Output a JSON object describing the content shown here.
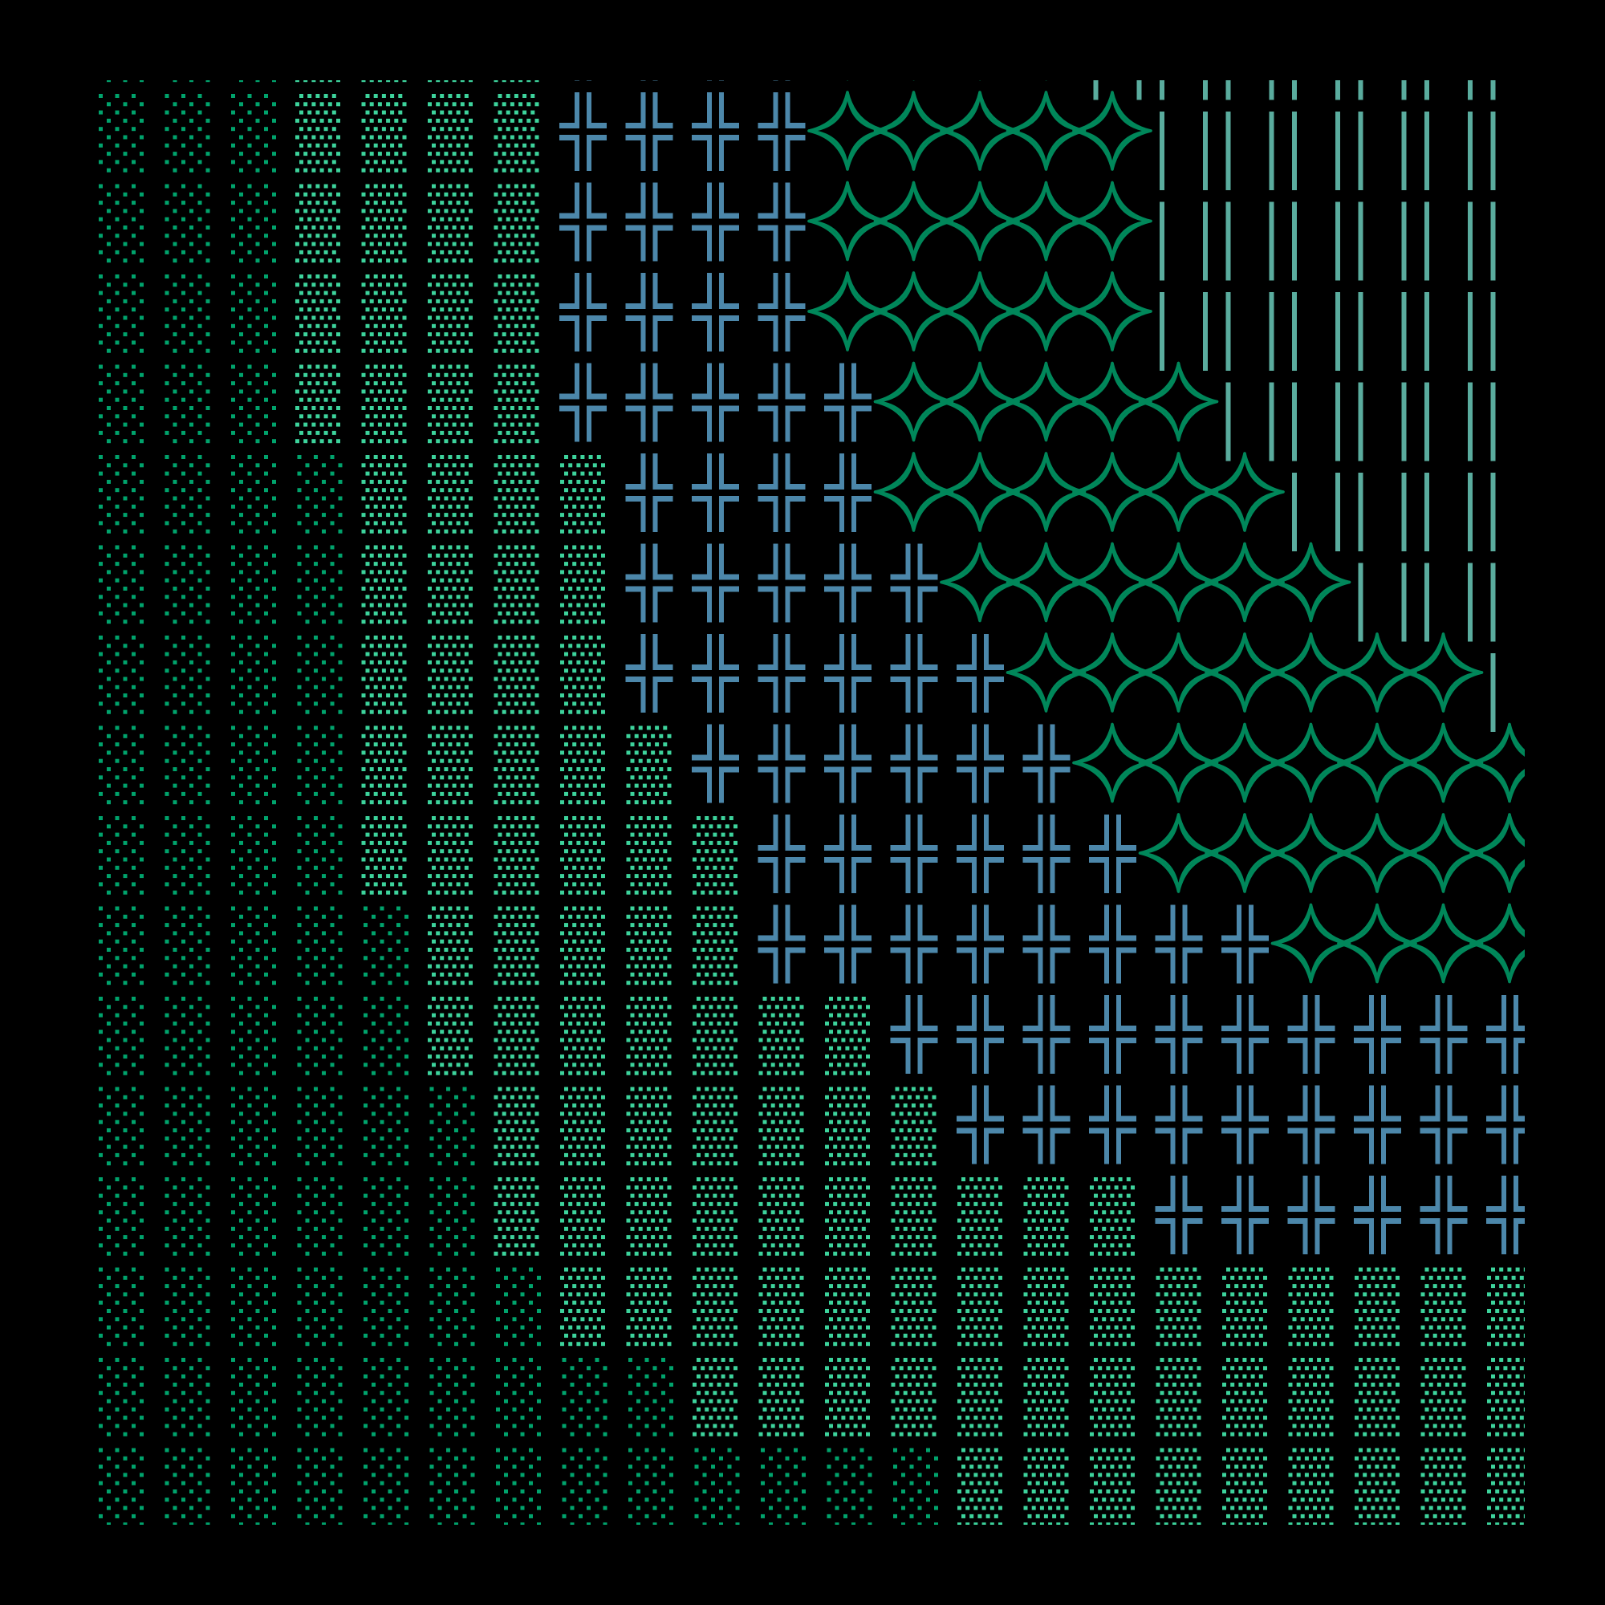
{
  "pattern": {
    "legend": {
      "s": "sparse-dots",
      "d": "dense-dots",
      "c": "double-cross",
      "x": "four-point-star",
      "l": "vertical-lines"
    },
    "colors": {
      "background": "#000000",
      "s": "#00a36c",
      "d": "#3dd39c",
      "c": "#4c87aa",
      "x": "#00875a",
      "l": "#5aac9e"
    },
    "partial_top_row": "sssddddccccxxxxlllllll",
    "rows": [
      "sssddddccccxxxxxllllll",
      "sssddddccccxxxxxllllll",
      "sssddddccccxxxxxllllll",
      "sssddddcccccxxxxxlllll",
      "ssssddddccccxxxxxxllll",
      "ssssddddcccccxxxxxxlll",
      "ssssddddccccccxxxxxxxl",
      "ssssdddddccccccxxxxxxx",
      "ssssddddddccccccxxxxxx",
      "sssssdddddccccccccxxxx",
      "sssssdddddddcccccccccc",
      "ssssssdddddddccccccccc",
      "ssssssddddddddddcccccc",
      "sssssssddddddddddddddd",
      "sssssssssddddddddddddd",
      "sssssssssssssddddddddd"
    ]
  }
}
